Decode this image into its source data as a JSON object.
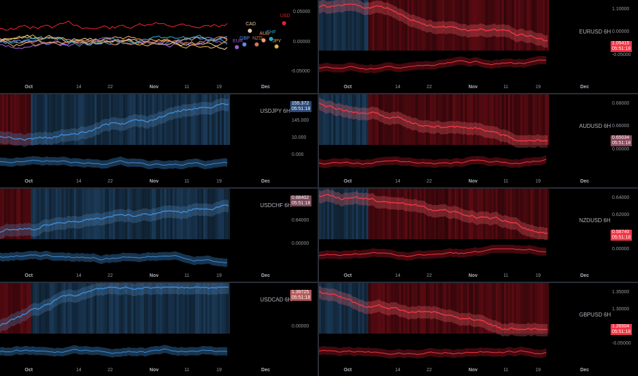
{
  "colors": {
    "bg": "#000000",
    "up": "#2962ff",
    "upLight": "#3d8bd9",
    "down": "#f23645",
    "bandUp": "#1b3a57",
    "bandDown": "#5a0b12"
  },
  "overview": {
    "yticks": [
      "0.05000",
      "0.00000",
      "-0.05000"
    ],
    "xticks": [
      "Oct",
      "14",
      "22",
      "Nov",
      "11",
      "19",
      "Dec"
    ],
    "currencies": [
      {
        "code": "USD",
        "color": "#e5202e"
      },
      {
        "code": "CAD",
        "color": "#e8c9a0"
      },
      {
        "code": "GBP",
        "color": "#5b8ef0"
      },
      {
        "code": "EUR",
        "color": "#9c5cd6"
      },
      {
        "code": "NZD",
        "color": "#c67b5c"
      },
      {
        "code": "AUD",
        "color": "#ff9a6a"
      },
      {
        "code": "CHF",
        "color": "#2aa9c7"
      },
      {
        "code": "JPY",
        "color": "#e0b04a"
      }
    ]
  },
  "panes": [
    {
      "id": "eurusd",
      "symbol": "EURUSD 6H",
      "price": "1.05415",
      "timer": "05:51:18",
      "badge_color": "#f23645",
      "yticks": [
        "1.10000",
        "0.00000",
        "-0.05000"
      ],
      "xticks": [
        "Oct",
        "14",
        "22",
        "Nov",
        "11",
        "19",
        "Dec"
      ],
      "trend": "down"
    },
    {
      "id": "usdjpy",
      "symbol": "USDJPY 6H",
      "price": "155.372",
      "timer": "05:51:18",
      "badge_color": "#2a4a7a",
      "yticks": [
        "150.000",
        "145.000",
        "10.000",
        "0.000"
      ],
      "xticks": [
        "Oct",
        "14",
        "22",
        "Nov",
        "11",
        "19",
        "Dec"
      ],
      "trend": "up"
    },
    {
      "id": "audusd",
      "symbol": "AUDUSD 6H",
      "price": "0.65034",
      "timer": "05:51:18",
      "badge_color": "#8b4a5c",
      "yticks": [
        "0.68000",
        "0.66000",
        "0.00000"
      ],
      "xticks": [
        "Oct",
        "14",
        "22",
        "Nov",
        "11",
        "19",
        "Dec"
      ],
      "trend": "down"
    },
    {
      "id": "usdchf",
      "symbol": "USDCHF 6H",
      "price": "0.88402",
      "timer": "05:51:18",
      "badge_color": "#7a4a5a",
      "yticks": [
        "0.86000",
        "0.84000",
        "0.00000"
      ],
      "xticks": [
        "Oct",
        "14",
        "22",
        "Nov",
        "11",
        "19",
        "Dec"
      ],
      "trend": "up"
    },
    {
      "id": "nzdusd",
      "symbol": "NZDUSD 6H",
      "price": "0.58740",
      "timer": "05:51:18",
      "badge_color": "#f23645",
      "yticks": [
        "0.64000",
        "0.62000",
        "0.60000",
        "0.00000"
      ],
      "xticks": [
        "Oct",
        "14",
        "22",
        "Nov",
        "11",
        "19",
        "Dec"
      ],
      "trend": "down"
    },
    {
      "id": "usdcad",
      "symbol": "USDCAD 6H",
      "price": "1.39725",
      "timer": "05:51:18",
      "badge_color": "#b45a5a",
      "yticks": [
        "1.35000",
        "0.00000"
      ],
      "xticks": [
        "Oct",
        "14",
        "22",
        "Nov",
        "11",
        "19",
        "Dec"
      ],
      "trend": "up"
    },
    {
      "id": "gbpusd",
      "symbol": "GBPUSD 6H",
      "price": "1.26504",
      "timer": "05:51:18",
      "badge_color": "#f23645",
      "yticks": [
        "1.35000",
        "1.30000",
        "0.00000",
        "-0.05000"
      ],
      "xticks": [
        "Oct",
        "14",
        "22",
        "Nov",
        "11",
        "19",
        "Dec"
      ],
      "trend": "down"
    }
  ]
}
